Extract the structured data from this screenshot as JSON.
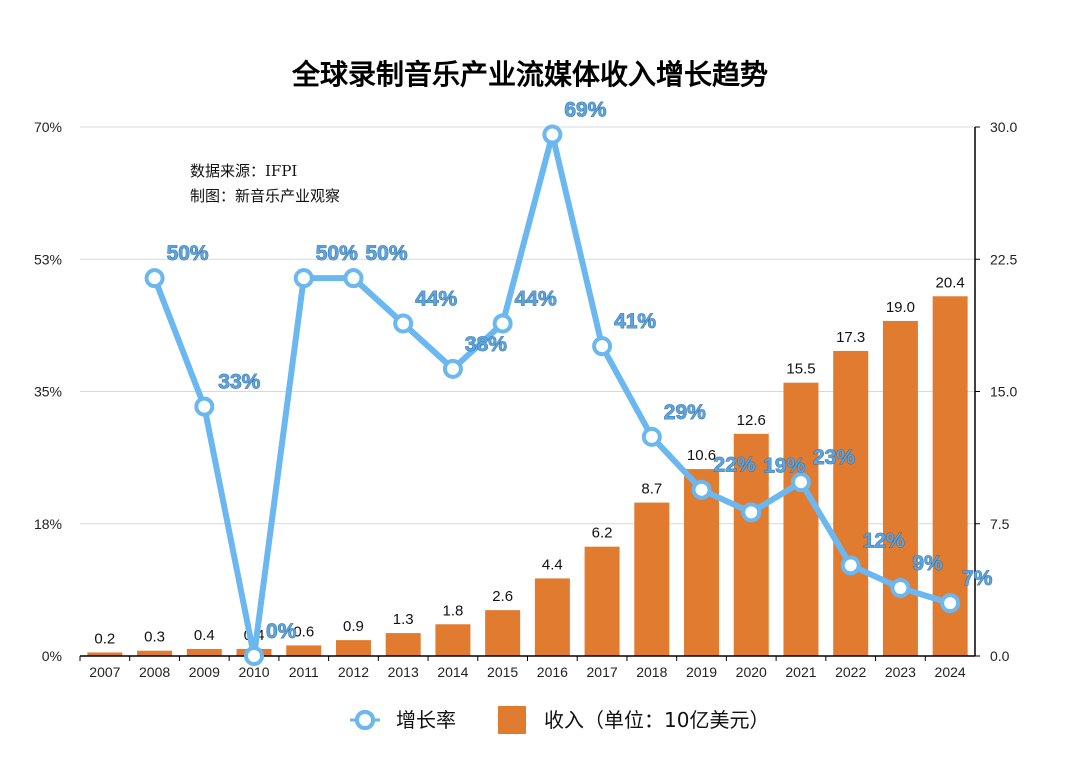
{
  "colors": {
    "bar": "#e07b30",
    "line": "#6bb7f0",
    "grid": "#d9d9d9",
    "axis": "#000000",
    "label": "#5aa4e0"
  },
  "chart_data": {
    "type": "bar+line",
    "title": "全球录制音乐产业流媒体收入增长趋势",
    "annotations": [
      "数据来源：IFPI",
      "制图：新音乐产业观察"
    ],
    "categories": [
      "2007",
      "2008",
      "2009",
      "2010",
      "2011",
      "2012",
      "2013",
      "2014",
      "2015",
      "2016",
      "2017",
      "2018",
      "2019",
      "2020",
      "2021",
      "2022",
      "2023",
      "2024"
    ],
    "left_axis": {
      "ticks": [
        "70%",
        "53%",
        "35%",
        "18%",
        "0%"
      ],
      "range": [
        0,
        70
      ]
    },
    "right_axis": {
      "ticks": [
        "30.0",
        "22.5",
        "15.0",
        "7.5",
        "0.0"
      ],
      "range": [
        0,
        30
      ]
    },
    "series": [
      {
        "name": "收入（单位：10亿美元）",
        "type": "bar",
        "axis": "right",
        "values": [
          0.2,
          0.3,
          0.4,
          0.4,
          0.6,
          0.9,
          1.3,
          1.8,
          2.6,
          4.4,
          6.2,
          8.7,
          10.6,
          12.6,
          15.5,
          17.3,
          19.0,
          20.4
        ],
        "labels": [
          "0.2",
          "0.3",
          "0.4",
          "0.4",
          "0.6",
          "0.9",
          "1.3",
          "1.8",
          "2.6",
          "4.4",
          "6.2",
          "8.7",
          "10.6",
          "12.6",
          "15.5",
          "17.3",
          "19.0",
          "20.4"
        ]
      },
      {
        "name": "增长率",
        "type": "line",
        "axis": "left",
        "values": [
          null,
          50,
          33,
          0,
          50,
          50,
          44,
          38,
          44,
          69,
          41,
          29,
          22,
          19,
          23,
          12,
          9,
          7
        ],
        "labels": [
          "",
          "50%",
          "33%",
          "0%",
          "50%",
          "50%",
          "44%",
          "38%",
          "44%",
          "69%",
          "41%",
          "29%",
          "22%",
          "19%",
          "23%",
          "12%",
          "9%",
          "7%"
        ]
      }
    ],
    "legend": [
      "增长率",
      "收入（单位：10亿美元）"
    ]
  }
}
